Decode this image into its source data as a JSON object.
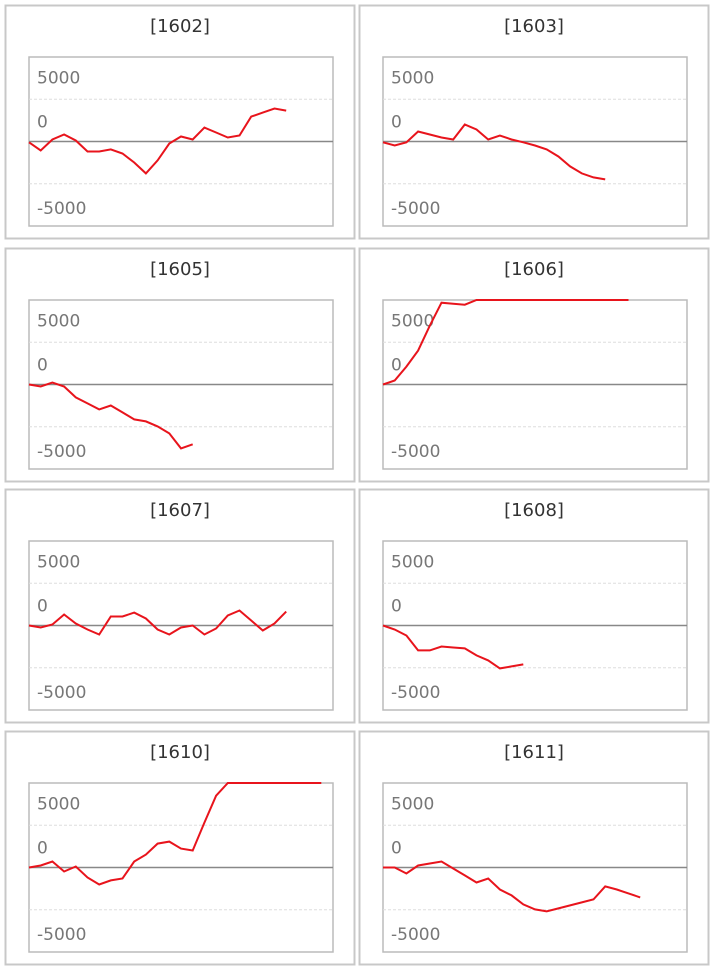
{
  "chart_data": [
    {
      "type": "line",
      "title": "[1602]",
      "ylim": [
        -10000,
        10000
      ],
      "yticks": [
        5000,
        0,
        -5000
      ],
      "grid": true,
      "series": [
        {
          "color": "#e8141c",
          "values": [
            -100,
            -1060,
            240,
            830,
            120,
            -1180,
            -1180,
            -940,
            -1420,
            -2480,
            -3780,
            -2240,
            -240,
            590,
            240,
            1650,
            1060,
            470,
            710,
            2950,
            3420,
            3900,
            3660
          ]
        }
      ]
    },
    {
      "type": "line",
      "title": "[1603]",
      "ylim": [
        -10000,
        10000
      ],
      "yticks": [
        5000,
        0,
        -5000
      ],
      "grid": true,
      "series": [
        {
          "color": "#e8141c",
          "values": [
            -100,
            -470,
            -100,
            1180,
            830,
            470,
            240,
            2010,
            1420,
            240,
            710,
            240,
            -100,
            -470,
            -940,
            -1770,
            -2950,
            -3780,
            -4250,
            -4490
          ]
        }
      ]
    },
    {
      "type": "line",
      "title": "[1605]",
      "ylim": [
        -10000,
        10000
      ],
      "yticks": [
        5000,
        0,
        -5000
      ],
      "grid": true,
      "series": [
        {
          "color": "#e8141c",
          "values": [
            0,
            -240,
            240,
            -240,
            -1530,
            -2240,
            -2950,
            -2480,
            -3300,
            -4130,
            -4370,
            -4960,
            -5790,
            -7560,
            -7080
          ]
        }
      ]
    },
    {
      "type": "line",
      "title": "[1606]",
      "ylim": [
        -10000,
        10000
      ],
      "yticks": [
        5000,
        0,
        -5000
      ],
      "grid": true,
      "series": [
        {
          "color": "#e8141c",
          "values": [
            0,
            470,
            2120,
            4010,
            6960,
            9680,
            9560,
            9440,
            10000,
            10000,
            10000,
            10000,
            10000,
            10000,
            10000,
            10000,
            10000,
            10000,
            10000,
            10000,
            10000,
            10000
          ]
        }
      ]
    },
    {
      "type": "line",
      "title": "[1607]",
      "ylim": [
        -10000,
        10000
      ],
      "yticks": [
        5000,
        0,
        -5000
      ],
      "grid": true,
      "series": [
        {
          "color": "#e8141c",
          "values": [
            0,
            -240,
            120,
            1300,
            240,
            -470,
            -1060,
            1060,
            1060,
            1530,
            830,
            -470,
            -1060,
            -240,
            0,
            -1060,
            -350,
            1180,
            1770,
            590,
            -590,
            240,
            1650
          ]
        }
      ]
    },
    {
      "type": "line",
      "title": "[1608]",
      "ylim": [
        -10000,
        10000
      ],
      "yticks": [
        5000,
        0,
        -5000
      ],
      "grid": true,
      "series": [
        {
          "color": "#e8141c",
          "values": [
            0,
            -470,
            -1180,
            -2950,
            -2950,
            -2480,
            -2600,
            -2710,
            -3540,
            -4130,
            -5080,
            -4840,
            -4600
          ]
        }
      ]
    },
    {
      "type": "line",
      "title": "[1610]",
      "ylim": [
        -10000,
        10000
      ],
      "yticks": [
        5000,
        0,
        -5000
      ],
      "grid": true,
      "series": [
        {
          "color": "#e8141c",
          "values": [
            0,
            240,
            710,
            -470,
            120,
            -1180,
            -2010,
            -1530,
            -1300,
            710,
            1530,
            2830,
            3070,
            2240,
            2010,
            5310,
            8500,
            10000,
            10000,
            10000,
            10000,
            10000,
            10000,
            10000,
            10000,
            10000
          ]
        }
      ]
    },
    {
      "type": "line",
      "title": "[1611]",
      "ylim": [
        -10000,
        10000
      ],
      "yticks": [
        5000,
        0,
        -5000
      ],
      "grid": true,
      "series": [
        {
          "color": "#e8141c",
          "values": [
            0,
            0,
            -710,
            240,
            470,
            710,
            -120,
            -940,
            -1770,
            -1300,
            -2600,
            -3300,
            -4370,
            -4960,
            -5190,
            -4840,
            -4490,
            -4130,
            -3780,
            -2240,
            -2600,
            -3070,
            -3540
          ]
        }
      ]
    }
  ]
}
